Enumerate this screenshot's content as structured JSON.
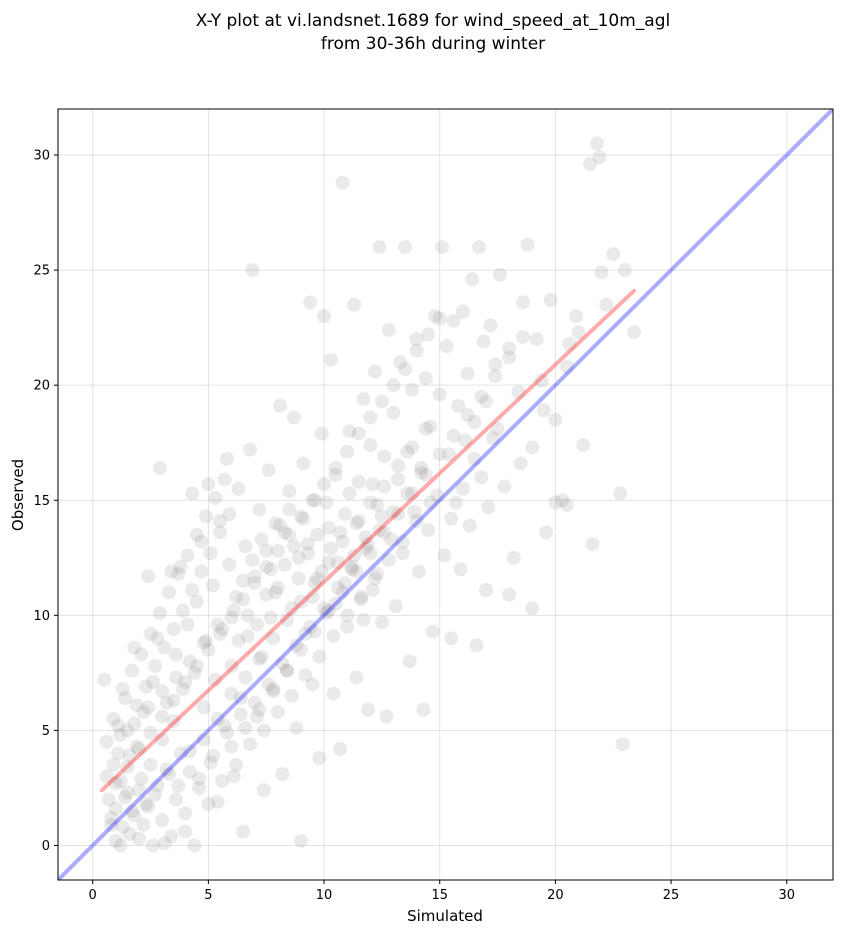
{
  "chart_data": {
    "type": "scatter",
    "title_line1": "X-Y plot at vi.landsnet.1689 for wind_speed_at_10m_agl",
    "title_line2": "from 30-36h during winter",
    "xlabel": "Simulated",
    "ylabel": "Observed",
    "xlim": [
      -1.5,
      32
    ],
    "ylim": [
      -1.5,
      32
    ],
    "xticks": [
      0,
      5,
      10,
      15,
      20,
      25,
      30
    ],
    "yticks": [
      0,
      5,
      10,
      15,
      20,
      25,
      30
    ],
    "grid": true,
    "point_color": "#808080",
    "identity_line": {
      "x": [
        -1.5,
        32
      ],
      "y": [
        -1.5,
        32
      ],
      "color": "#0000ff"
    },
    "fit_line": {
      "x": [
        0.4,
        23.4
      ],
      "y": [
        2.4,
        24.1
      ],
      "color": "#ff0000"
    },
    "points": [
      [
        0.5,
        7.2
      ],
      [
        0.6,
        4.5
      ],
      [
        0.7,
        2.0
      ],
      [
        0.8,
        1.2
      ],
      [
        0.9,
        3.5
      ],
      [
        1.0,
        0.2
      ],
      [
        1.1,
        5.2
      ],
      [
        1.2,
        2.8
      ],
      [
        1.3,
        0.8
      ],
      [
        1.4,
        6.4
      ],
      [
        1.5,
        2.3
      ],
      [
        1.6,
        3.9
      ],
      [
        1.7,
        1.5
      ],
      [
        1.8,
        8.6
      ],
      [
        1.9,
        4.3
      ],
      [
        2.0,
        0.3
      ],
      [
        2.1,
        2.9
      ],
      [
        2.2,
        5.8
      ],
      [
        2.3,
        1.8
      ],
      [
        2.4,
        11.7
      ],
      [
        2.5,
        3.5
      ],
      [
        2.6,
        7.1
      ],
      [
        2.7,
        2.2
      ],
      [
        2.8,
        9.0
      ],
      [
        2.9,
        16.4
      ],
      [
        3.0,
        4.6
      ],
      [
        3.1,
        0.1
      ],
      [
        3.2,
        6.2
      ],
      [
        3.3,
        3.1
      ],
      [
        3.4,
        11.9
      ],
      [
        3.5,
        5.4
      ],
      [
        3.6,
        8.3
      ],
      [
        3.7,
        2.6
      ],
      [
        3.8,
        12.1
      ],
      [
        3.9,
        6.8
      ],
      [
        4.0,
        0.6
      ],
      [
        4.1,
        9.6
      ],
      [
        4.2,
        4.1
      ],
      [
        4.3,
        15.3
      ],
      [
        4.4,
        7.5
      ],
      [
        4.5,
        10.6
      ],
      [
        4.6,
        2.9
      ],
      [
        4.7,
        13.2
      ],
      [
        4.8,
        6.0
      ],
      [
        4.9,
        8.9
      ],
      [
        5.0,
        15.7
      ],
      [
        5.1,
        3.6
      ],
      [
        5.2,
        11.3
      ],
      [
        5.3,
        7.2
      ],
      [
        5.4,
        1.9
      ],
      [
        5.5,
        14.1
      ],
      [
        5.6,
        9.4
      ],
      [
        5.7,
        5.2
      ],
      [
        5.8,
        16.8
      ],
      [
        5.9,
        12.2
      ],
      [
        6.0,
        7.8
      ],
      [
        6.1,
        3.0
      ],
      [
        6.2,
        10.8
      ],
      [
        6.3,
        15.5
      ],
      [
        6.4,
        6.4
      ],
      [
        6.5,
        0.6
      ],
      [
        6.6,
        13.0
      ],
      [
        6.7,
        9.1
      ],
      [
        6.8,
        17.2
      ],
      [
        6.9,
        25.0
      ],
      [
        7.0,
        11.7
      ],
      [
        7.1,
        5.6
      ],
      [
        7.2,
        14.6
      ],
      [
        7.3,
        8.2
      ],
      [
        7.4,
        2.4
      ],
      [
        7.5,
        12.8
      ],
      [
        7.6,
        16.3
      ],
      [
        7.7,
        9.9
      ],
      [
        7.8,
        6.7
      ],
      [
        7.9,
        14.0
      ],
      [
        8.0,
        11.2
      ],
      [
        8.1,
        19.1
      ],
      [
        8.2,
        3.1
      ],
      [
        8.3,
        13.6
      ],
      [
        8.4,
        7.6
      ],
      [
        8.5,
        15.4
      ],
      [
        8.6,
        10.3
      ],
      [
        8.7,
        18.6
      ],
      [
        8.8,
        5.1
      ],
      [
        8.9,
        12.5
      ],
      [
        9.0,
        0.2
      ],
      [
        9.1,
        16.6
      ],
      [
        9.2,
        9.2
      ],
      [
        9.3,
        13.1
      ],
      [
        9.4,
        23.6
      ],
      [
        9.5,
        7.0
      ],
      [
        9.6,
        15.0
      ],
      [
        9.7,
        11.6
      ],
      [
        9.8,
        3.8
      ],
      [
        9.9,
        17.9
      ],
      [
        10.0,
        23.0
      ],
      [
        10.1,
        10.1
      ],
      [
        10.2,
        13.8
      ],
      [
        10.3,
        21.1
      ],
      [
        10.4,
        6.6
      ],
      [
        10.5,
        16.1
      ],
      [
        10.6,
        12.3
      ],
      [
        10.7,
        4.2
      ],
      [
        10.8,
        28.8
      ],
      [
        10.9,
        14.4
      ],
      [
        11.0,
        9.5
      ],
      [
        11.1,
        18.0
      ],
      [
        11.2,
        12.0
      ],
      [
        11.3,
        23.5
      ],
      [
        11.4,
        7.3
      ],
      [
        11.5,
        15.8
      ],
      [
        11.6,
        10.7
      ],
      [
        11.7,
        19.4
      ],
      [
        11.8,
        13.4
      ],
      [
        11.9,
        5.9
      ],
      [
        12.0,
        17.4
      ],
      [
        12.1,
        11.1
      ],
      [
        12.2,
        20.6
      ],
      [
        12.3,
        14.8
      ],
      [
        12.4,
        26.0
      ],
      [
        12.5,
        9.7
      ],
      [
        12.6,
        16.9
      ],
      [
        12.7,
        5.6
      ],
      [
        12.8,
        22.4
      ],
      [
        12.9,
        13.3
      ],
      [
        13.0,
        18.8
      ],
      [
        13.1,
        10.4
      ],
      [
        13.2,
        15.9
      ],
      [
        13.3,
        21.0
      ],
      [
        13.4,
        12.7
      ],
      [
        13.5,
        26.0
      ],
      [
        13.6,
        17.1
      ],
      [
        13.7,
        8.0
      ],
      [
        13.8,
        19.8
      ],
      [
        13.9,
        14.5
      ],
      [
        14.0,
        22.0
      ],
      [
        14.1,
        11.9
      ],
      [
        14.2,
        16.4
      ],
      [
        14.3,
        5.9
      ],
      [
        14.4,
        20.3
      ],
      [
        14.5,
        13.7
      ],
      [
        14.6,
        18.2
      ],
      [
        14.7,
        9.3
      ],
      [
        14.8,
        23.0
      ],
      [
        14.9,
        15.2
      ],
      [
        15.0,
        19.6
      ],
      [
        15.1,
        26.0
      ],
      [
        15.2,
        12.6
      ],
      [
        15.3,
        21.7
      ],
      [
        15.4,
        17.0
      ],
      [
        15.5,
        9.0
      ],
      [
        15.6,
        22.8
      ],
      [
        15.7,
        14.9
      ],
      [
        15.8,
        19.1
      ],
      [
        15.9,
        12.0
      ],
      [
        16.0,
        23.2
      ],
      [
        16.1,
        17.6
      ],
      [
        16.2,
        20.5
      ],
      [
        16.3,
        13.9
      ],
      [
        16.4,
        24.6
      ],
      [
        16.5,
        18.4
      ],
      [
        16.6,
        8.7
      ],
      [
        16.7,
        26.0
      ],
      [
        16.8,
        16.0
      ],
      [
        16.9,
        21.9
      ],
      [
        17.0,
        19.3
      ],
      [
        17.1,
        14.7
      ],
      [
        17.2,
        22.6
      ],
      [
        17.3,
        17.7
      ],
      [
        17.4,
        20.9
      ],
      [
        17.6,
        24.8
      ],
      [
        17.8,
        15.6
      ],
      [
        18.0,
        21.6
      ],
      [
        18.2,
        12.5
      ],
      [
        18.4,
        19.7
      ],
      [
        18.6,
        23.6
      ],
      [
        18.8,
        26.1
      ],
      [
        19.0,
        17.3
      ],
      [
        19.2,
        22.0
      ],
      [
        19.4,
        20.2
      ],
      [
        19.6,
        13.6
      ],
      [
        19.8,
        23.7
      ],
      [
        20.0,
        18.5
      ],
      [
        20.3,
        15.0
      ],
      [
        20.6,
        21.8
      ],
      [
        20.9,
        23.0
      ],
      [
        21.2,
        17.4
      ],
      [
        21.5,
        29.6
      ],
      [
        21.8,
        30.5
      ],
      [
        21.9,
        29.9
      ],
      [
        22.0,
        24.9
      ],
      [
        22.2,
        23.5
      ],
      [
        22.5,
        25.7
      ],
      [
        22.8,
        15.3
      ],
      [
        23.0,
        25.0
      ],
      [
        23.4,
        22.3
      ],
      [
        21.6,
        13.1
      ],
      [
        22.9,
        4.4
      ],
      [
        20.5,
        14.8
      ],
      [
        21.0,
        22.3
      ],
      [
        0.8,
        0.9
      ],
      [
        1.0,
        1.6
      ],
      [
        1.2,
        0.0
      ],
      [
        1.4,
        2.1
      ],
      [
        1.6,
        0.5
      ],
      [
        1.8,
        1.3
      ],
      [
        2.0,
        2.4
      ],
      [
        2.2,
        0.9
      ],
      [
        2.4,
        1.7
      ],
      [
        2.6,
        0.0
      ],
      [
        2.8,
        2.6
      ],
      [
        3.0,
        1.1
      ],
      [
        3.2,
        3.3
      ],
      [
        3.4,
        0.4
      ],
      [
        3.6,
        2.0
      ],
      [
        3.8,
        4.0
      ],
      [
        4.0,
        1.4
      ],
      [
        4.2,
        3.2
      ],
      [
        4.4,
        0.0
      ],
      [
        4.6,
        2.5
      ],
      [
        4.8,
        4.6
      ],
      [
        5.0,
        1.8
      ],
      [
        5.2,
        3.9
      ],
      [
        5.4,
        5.5
      ],
      [
        5.6,
        2.8
      ],
      [
        5.8,
        4.9
      ],
      [
        6.0,
        6.6
      ],
      [
        6.2,
        3.5
      ],
      [
        6.4,
        5.7
      ],
      [
        6.6,
        7.3
      ],
      [
        6.8,
        4.4
      ],
      [
        7.0,
        6.2
      ],
      [
        7.2,
        8.1
      ],
      [
        7.4,
        5.0
      ],
      [
        7.6,
        7.0
      ],
      [
        7.8,
        9.0
      ],
      [
        8.0,
        5.8
      ],
      [
        8.2,
        7.9
      ],
      [
        8.4,
        9.8
      ],
      [
        8.6,
        6.5
      ],
      [
        8.8,
        8.7
      ],
      [
        9.0,
        10.6
      ],
      [
        9.2,
        7.4
      ],
      [
        9.4,
        9.5
      ],
      [
        9.6,
        11.4
      ],
      [
        9.8,
        8.2
      ],
      [
        10.0,
        10.3
      ],
      [
        10.2,
        12.3
      ],
      [
        10.4,
        9.1
      ],
      [
        10.6,
        11.2
      ],
      [
        10.8,
        13.2
      ],
      [
        11.0,
        10.0
      ],
      [
        11.2,
        12.1
      ],
      [
        11.4,
        14.0
      ],
      [
        11.6,
        10.8
      ],
      [
        11.8,
        12.9
      ],
      [
        12.0,
        14.9
      ],
      [
        12.2,
        11.6
      ],
      [
        12.4,
        13.7
      ],
      [
        12.6,
        15.6
      ],
      [
        12.8,
        12.4
      ],
      [
        13.0,
        14.5
      ],
      [
        13.2,
        16.5
      ],
      [
        13.4,
        13.2
      ],
      [
        13.6,
        15.3
      ],
      [
        13.8,
        17.3
      ],
      [
        14.0,
        14.1
      ],
      [
        14.2,
        16.2
      ],
      [
        14.4,
        18.1
      ],
      [
        14.6,
        14.9
      ],
      [
        0.6,
        3.0
      ],
      [
        0.9,
        5.5
      ],
      [
        1.1,
        4.0
      ],
      [
        1.3,
        6.8
      ],
      [
        1.5,
        5.0
      ],
      [
        1.7,
        7.6
      ],
      [
        1.9,
        6.1
      ],
      [
        2.1,
        8.3
      ],
      [
        2.3,
        6.9
      ],
      [
        2.5,
        9.2
      ],
      [
        2.7,
        7.8
      ],
      [
        2.9,
        10.1
      ],
      [
        3.1,
        8.6
      ],
      [
        3.3,
        11.0
      ],
      [
        3.5,
        9.4
      ],
      [
        3.7,
        11.8
      ],
      [
        3.9,
        10.2
      ],
      [
        4.1,
        12.6
      ],
      [
        4.3,
        11.1
      ],
      [
        4.5,
        13.5
      ],
      [
        4.7,
        11.9
      ],
      [
        4.9,
        14.3
      ],
      [
        5.1,
        12.7
      ],
      [
        5.3,
        15.1
      ],
      [
        5.5,
        13.6
      ],
      [
        5.7,
        15.9
      ],
      [
        5.9,
        14.4
      ],
      [
        6.1,
        10.2
      ],
      [
        6.3,
        8.9
      ],
      [
        6.5,
        11.5
      ],
      [
        6.7,
        10.0
      ],
      [
        6.9,
        12.4
      ],
      [
        7.1,
        9.6
      ],
      [
        7.3,
        13.3
      ],
      [
        7.5,
        10.9
      ],
      [
        7.7,
        12.0
      ],
      [
        7.9,
        11.0
      ],
      [
        8.1,
        13.9
      ],
      [
        8.3,
        12.2
      ],
      [
        8.5,
        14.6
      ],
      [
        8.7,
        13.0
      ],
      [
        8.9,
        11.6
      ],
      [
        9.1,
        14.2
      ],
      [
        9.3,
        12.7
      ],
      [
        9.5,
        10.8
      ],
      [
        9.7,
        13.5
      ],
      [
        9.9,
        11.9
      ],
      [
        10.1,
        14.9
      ],
      [
        10.3,
        12.9
      ],
      [
        10.5,
        10.5
      ],
      [
        10.7,
        13.6
      ],
      [
        10.9,
        11.4
      ],
      [
        11.1,
        15.3
      ],
      [
        11.3,
        12.6
      ],
      [
        11.5,
        14.1
      ],
      [
        11.7,
        9.8
      ],
      [
        11.9,
        13.1
      ],
      [
        12.1,
        15.7
      ],
      [
        12.3,
        11.8
      ],
      [
        12.5,
        14.3
      ],
      [
        1.0,
        2.7
      ],
      [
        1.5,
        3.4
      ],
      [
        2.0,
        4.2
      ],
      [
        2.5,
        4.9
      ],
      [
        3.0,
        5.6
      ],
      [
        3.5,
        6.3
      ],
      [
        4.0,
        7.1
      ],
      [
        4.5,
        7.8
      ],
      [
        5.0,
        8.5
      ],
      [
        5.5,
        9.2
      ],
      [
        6.0,
        9.9
      ],
      [
        6.5,
        10.7
      ],
      [
        7.0,
        11.4
      ],
      [
        7.5,
        12.1
      ],
      [
        8.0,
        12.8
      ],
      [
        8.5,
        13.5
      ],
      [
        9.0,
        14.3
      ],
      [
        9.5,
        15.0
      ],
      [
        10.0,
        15.7
      ],
      [
        10.5,
        16.4
      ],
      [
        11.0,
        17.1
      ],
      [
        11.5,
        17.9
      ],
      [
        12.0,
        18.6
      ],
      [
        12.5,
        19.3
      ],
      [
        13.0,
        20.0
      ],
      [
        13.5,
        20.7
      ],
      [
        14.0,
        21.5
      ],
      [
        14.5,
        22.2
      ],
      [
        15.0,
        22.9
      ],
      [
        15.5,
        14.2
      ],
      [
        16.0,
        15.5
      ],
      [
        16.5,
        16.8
      ],
      [
        17.0,
        11.1
      ],
      [
        17.5,
        18.1
      ],
      [
        18.0,
        10.9
      ],
      [
        18.5,
        16.6
      ],
      [
        19.0,
        10.3
      ],
      [
        19.5,
        18.9
      ],
      [
        20.0,
        14.9
      ],
      [
        20.5,
        20.8
      ],
      [
        1.2,
        4.8
      ],
      [
        1.8,
        5.3
      ],
      [
        2.4,
        6.0
      ],
      [
        3.0,
        6.7
      ],
      [
        3.6,
        7.3
      ],
      [
        4.2,
        8.0
      ],
      [
        4.8,
        8.8
      ],
      [
        5.4,
        9.6
      ],
      [
        6.0,
        4.3
      ],
      [
        6.6,
        5.1
      ],
      [
        7.2,
        5.9
      ],
      [
        7.8,
        6.8
      ],
      [
        8.4,
        7.6
      ],
      [
        9.0,
        8.5
      ],
      [
        9.6,
        9.3
      ],
      [
        10.2,
        10.2
      ],
      [
        10.8,
        11.0
      ],
      [
        11.4,
        11.9
      ],
      [
        12.0,
        12.7
      ],
      [
        12.6,
        13.6
      ],
      [
        13.2,
        14.4
      ],
      [
        13.8,
        15.3
      ],
      [
        14.4,
        16.1
      ],
      [
        15.0,
        17.0
      ],
      [
        15.6,
        17.8
      ],
      [
        16.2,
        18.7
      ],
      [
        16.8,
        19.5
      ],
      [
        17.4,
        20.4
      ],
      [
        18.0,
        21.2
      ],
      [
        18.6,
        22.1
      ]
    ]
  }
}
